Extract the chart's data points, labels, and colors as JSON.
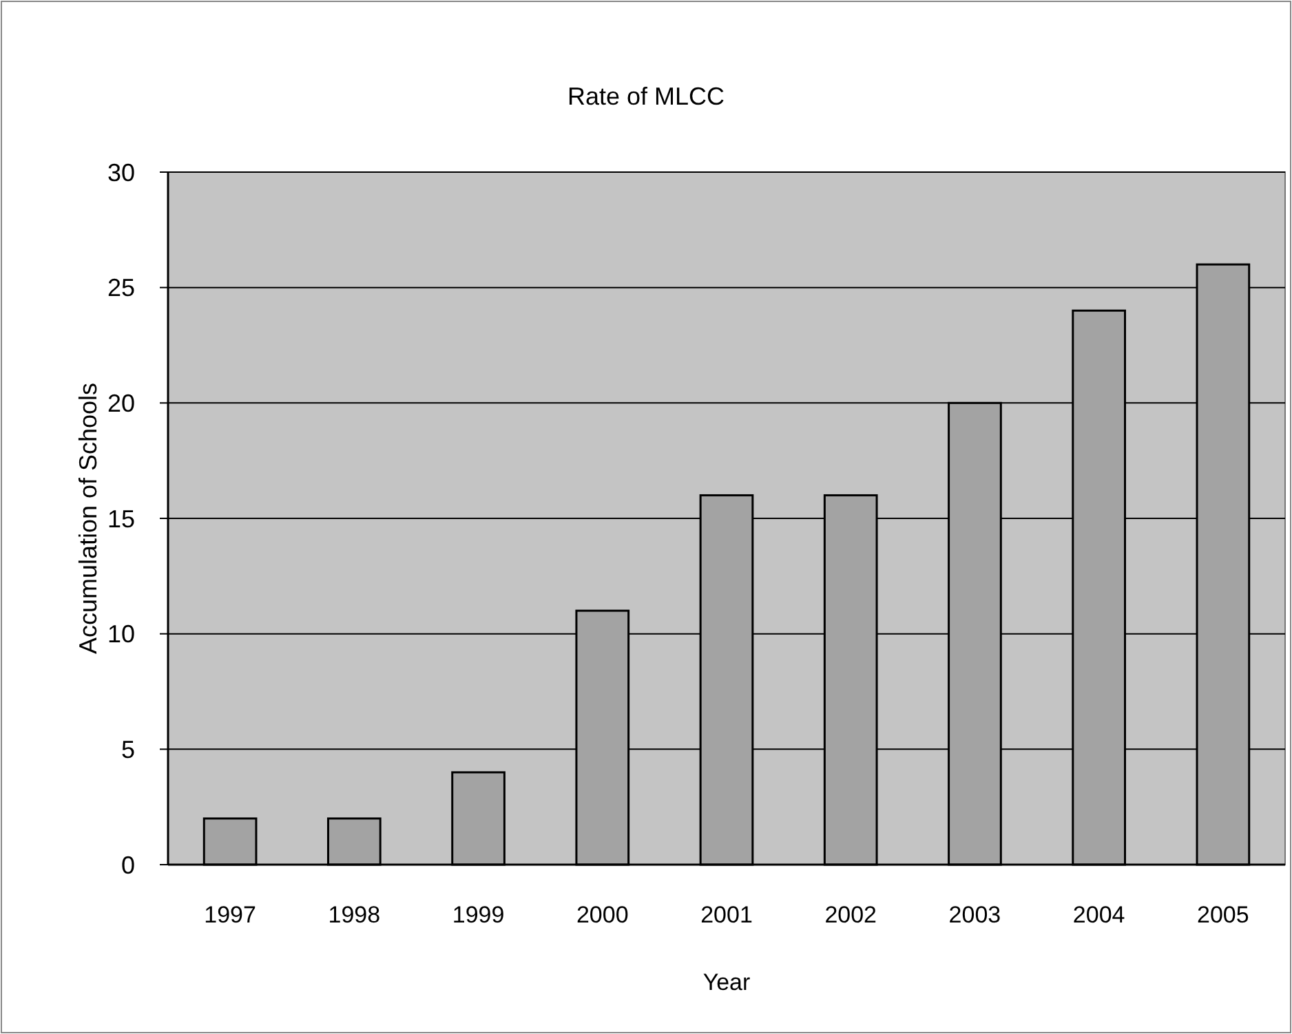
{
  "chart_data": {
    "type": "bar",
    "title": "Rate of MLCC",
    "xlabel": "Year",
    "ylabel": "Accumulation of Schools",
    "categories": [
      "1997",
      "1998",
      "1999",
      "2000",
      "2001",
      "2002",
      "2003",
      "2004",
      "2005"
    ],
    "values": [
      2,
      2,
      4,
      11,
      16,
      16,
      20,
      24,
      26
    ],
    "color": "#a3a3a3",
    "ylim": [
      0,
      30
    ],
    "yticks": [
      0,
      5,
      10,
      15,
      20,
      25,
      30
    ],
    "grid": "y"
  }
}
